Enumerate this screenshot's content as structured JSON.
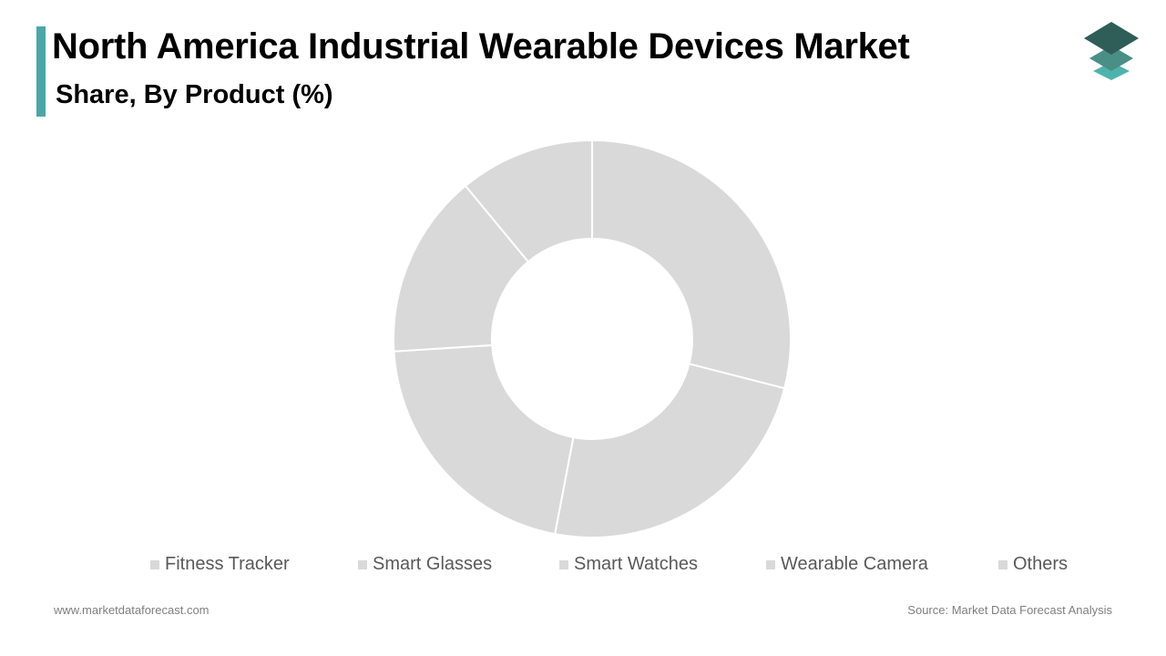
{
  "header": {
    "title": "North America Industrial Wearable Devices Market",
    "subtitle": "Share, By Product (%)"
  },
  "logo": {
    "icon": "layered-stack-logo",
    "colors": [
      "#2e5e57",
      "#4a8f86",
      "#4fb3ad"
    ]
  },
  "colors": {
    "accent": "#4aa7a6",
    "slice": "#d9d9d9",
    "slice_border": "#ffffff"
  },
  "chart_data": {
    "type": "pie",
    "variant": "donut",
    "categories": [
      "Fitness Tracker",
      "Smart Glasses",
      "Smart Watches",
      "Wearable Camera",
      "Others"
    ],
    "values": [
      29,
      24,
      21,
      15,
      11
    ],
    "legend": "bottom",
    "colors": [
      "#d9d9d9",
      "#d9d9d9",
      "#d9d9d9",
      "#d9d9d9",
      "#d9d9d9"
    ]
  },
  "footer": {
    "website": "www.marketdataforecast.com",
    "source": "Source: Market Data Forecast Analysis"
  }
}
